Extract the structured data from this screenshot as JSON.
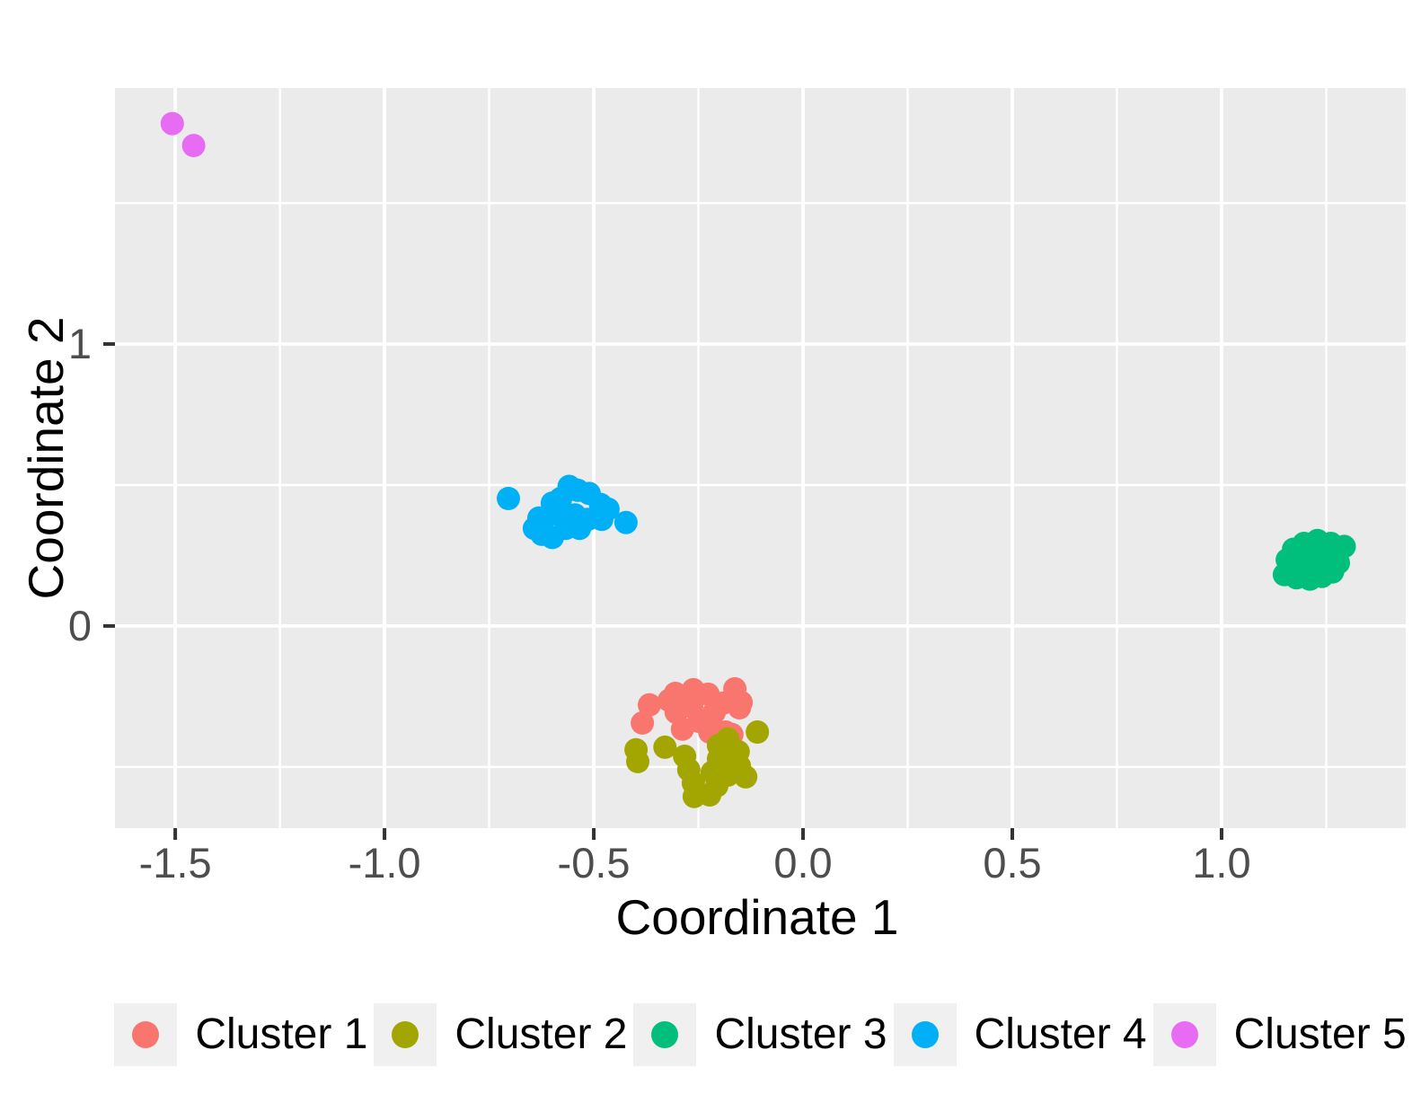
{
  "figure": {
    "background": "#FFFFFF",
    "panel_background": "#EBEBEB",
    "grid_color": "#FFFFFF",
    "tick_mark_color": "#333333",
    "tick_label_color": "#4D4D4D",
    "axis_title_color": "#000000",
    "legend_key_background": "#F0F0F0",
    "legend_text_color": "#000000"
  },
  "chart_data": {
    "type": "scatter",
    "title": "",
    "xlabel": "Coordinate 1",
    "ylabel": "Coordinate 2",
    "xlim": [
      -1.644,
      1.44
    ],
    "ylim": [
      -0.717,
      1.908
    ],
    "grid": "on",
    "legend_position": "bottom",
    "point_radius_px": 13,
    "legend_dot_radius_px": 15,
    "x_major_ticks": [
      -1.5,
      -1.0,
      -0.5,
      0.0,
      0.5,
      1.0
    ],
    "x_tick_labels": [
      "-1.5",
      "-1.0",
      "-0.5",
      "0.0",
      "0.5",
      "1.0"
    ],
    "x_minor_ticks": [
      -1.25,
      -0.75,
      -0.25,
      0.25,
      0.75,
      1.25
    ],
    "y_major_ticks": [
      0,
      1
    ],
    "y_tick_labels": [
      "0",
      "1"
    ],
    "y_minor_ticks": [
      -0.5,
      0.5,
      1.5
    ],
    "series": [
      {
        "name": "Cluster 1",
        "color": "#F8766D",
        "points": [
          [
            -0.367,
            -0.28
          ],
          [
            -0.384,
            -0.344
          ],
          [
            -0.32,
            -0.264
          ],
          [
            -0.305,
            -0.239
          ],
          [
            -0.262,
            -0.226
          ],
          [
            -0.227,
            -0.242
          ],
          [
            -0.266,
            -0.287
          ],
          [
            -0.303,
            -0.306
          ],
          [
            -0.288,
            -0.366
          ],
          [
            -0.249,
            -0.338
          ],
          [
            -0.212,
            -0.306
          ],
          [
            -0.191,
            -0.274
          ],
          [
            -0.163,
            -0.223
          ],
          [
            -0.152,
            -0.29
          ],
          [
            -0.223,
            -0.376
          ],
          [
            -0.185,
            -0.376
          ],
          [
            -0.148,
            -0.271
          ],
          [
            -0.17,
            -0.385
          ]
        ]
      },
      {
        "name": "Cluster 2",
        "color": "#A3A500",
        "points": [
          [
            -0.109,
            -0.376
          ],
          [
            -0.399,
            -0.439
          ],
          [
            -0.395,
            -0.481
          ],
          [
            -0.33,
            -0.43
          ],
          [
            -0.283,
            -0.462
          ],
          [
            -0.273,
            -0.51
          ],
          [
            -0.262,
            -0.557
          ],
          [
            -0.26,
            -0.605
          ],
          [
            -0.217,
            -0.519
          ],
          [
            -0.202,
            -0.471
          ],
          [
            -0.202,
            -0.424
          ],
          [
            -0.18,
            -0.401
          ],
          [
            -0.155,
            -0.446
          ],
          [
            -0.152,
            -0.497
          ],
          [
            -0.18,
            -0.529
          ],
          [
            -0.206,
            -0.567
          ],
          [
            -0.223,
            -0.599
          ],
          [
            -0.137,
            -0.535
          ]
        ]
      },
      {
        "name": "Cluster 3",
        "color": "#00BF7D",
        "points": [
          [
            1.172,
            0.272
          ],
          [
            1.197,
            0.293
          ],
          [
            1.229,
            0.303
          ],
          [
            1.261,
            0.293
          ],
          [
            1.293,
            0.282
          ],
          [
            1.157,
            0.235
          ],
          [
            1.19,
            0.229
          ],
          [
            1.222,
            0.235
          ],
          [
            1.254,
            0.229
          ],
          [
            1.279,
            0.224
          ],
          [
            1.15,
            0.182
          ],
          [
            1.179,
            0.171
          ],
          [
            1.211,
            0.166
          ],
          [
            1.24,
            0.176
          ],
          [
            1.265,
            0.192
          ]
        ]
      },
      {
        "name": "Cluster 4",
        "color": "#00B0F6",
        "points": [
          [
            -0.704,
            0.452
          ],
          [
            -0.423,
            0.367
          ],
          [
            -0.579,
            0.452
          ],
          [
            -0.538,
            0.481
          ],
          [
            -0.511,
            0.47
          ],
          [
            -0.484,
            0.431
          ],
          [
            -0.466,
            0.415
          ],
          [
            -0.481,
            0.378
          ],
          [
            -0.515,
            0.378
          ],
          [
            -0.545,
            0.394
          ],
          [
            -0.577,
            0.394
          ],
          [
            -0.607,
            0.394
          ],
          [
            -0.631,
            0.383
          ],
          [
            -0.642,
            0.346
          ],
          [
            -0.624,
            0.325
          ],
          [
            -0.599,
            0.314
          ],
          [
            -0.567,
            0.346
          ],
          [
            -0.534,
            0.346
          ],
          [
            -0.559,
            0.495
          ],
          [
            -0.599,
            0.436
          ]
        ]
      },
      {
        "name": "Cluster 5",
        "color": "#E76BF3",
        "points": [
          [
            -1.507,
            1.782
          ],
          [
            -1.456,
            1.704
          ]
        ]
      }
    ]
  }
}
